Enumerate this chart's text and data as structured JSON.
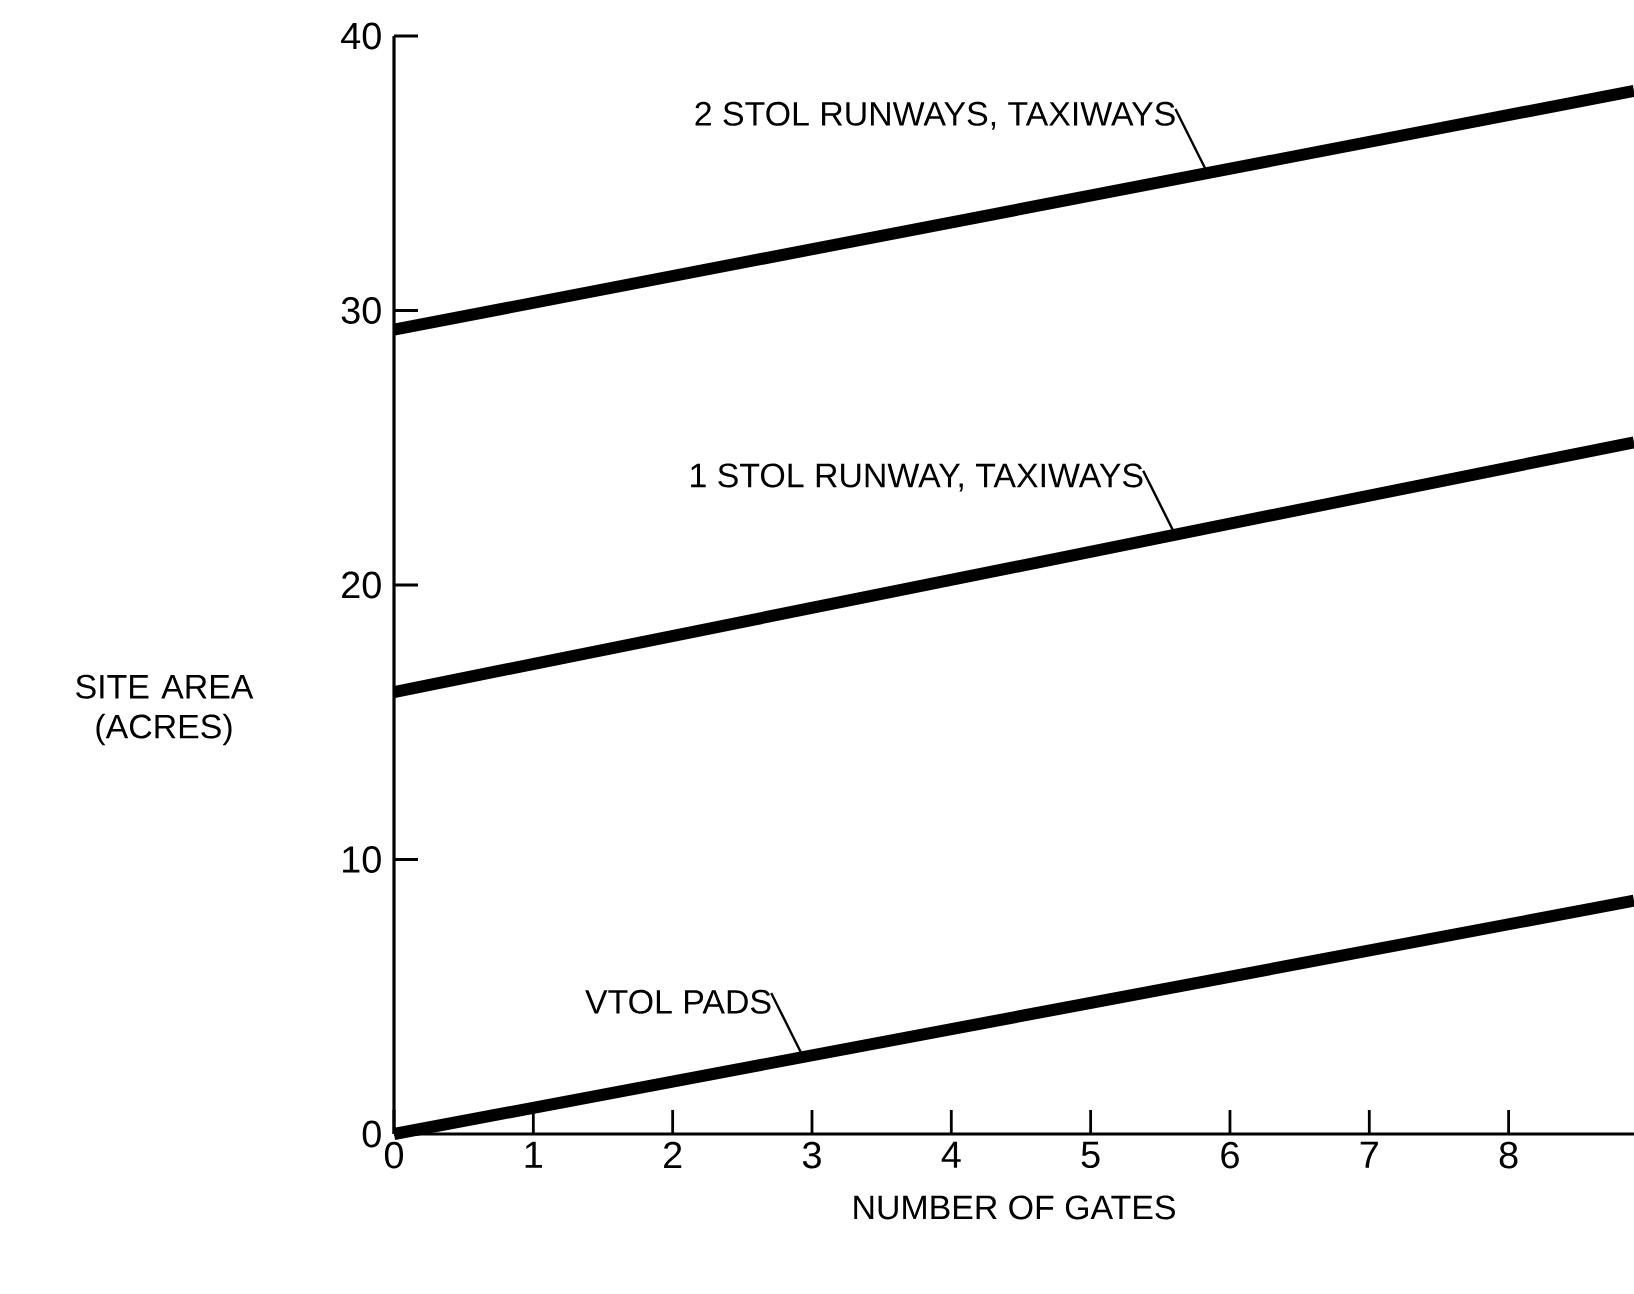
{
  "chart_data": {
    "type": "line",
    "xlabel": "NUMBER OF GATES",
    "ylabel": "SITE AREA (ACRES)",
    "x": [
      0,
      8.9
    ],
    "series": [
      {
        "name": "2 STOL RUNWAYS, TAXIWAYS",
        "color": "#000000",
        "values": [
          29.3,
          38.0
        ]
      },
      {
        "name": "1 STOL RUNWAY, TAXIWAYS",
        "color": "#000000",
        "values": [
          16.1,
          25.2
        ]
      },
      {
        "name": "VTOL PADS",
        "color": "#000000",
        "values": [
          0,
          8.5
        ]
      }
    ],
    "xlim": [
      0,
      8.9
    ],
    "ylim": [
      0,
      40
    ],
    "xticks": [
      0,
      1,
      2,
      3,
      4,
      5,
      6,
      7,
      8
    ],
    "yticks": [
      0,
      10,
      20,
      30,
      40
    ],
    "grid": false,
    "marker": "none",
    "line_style": "solid"
  }
}
